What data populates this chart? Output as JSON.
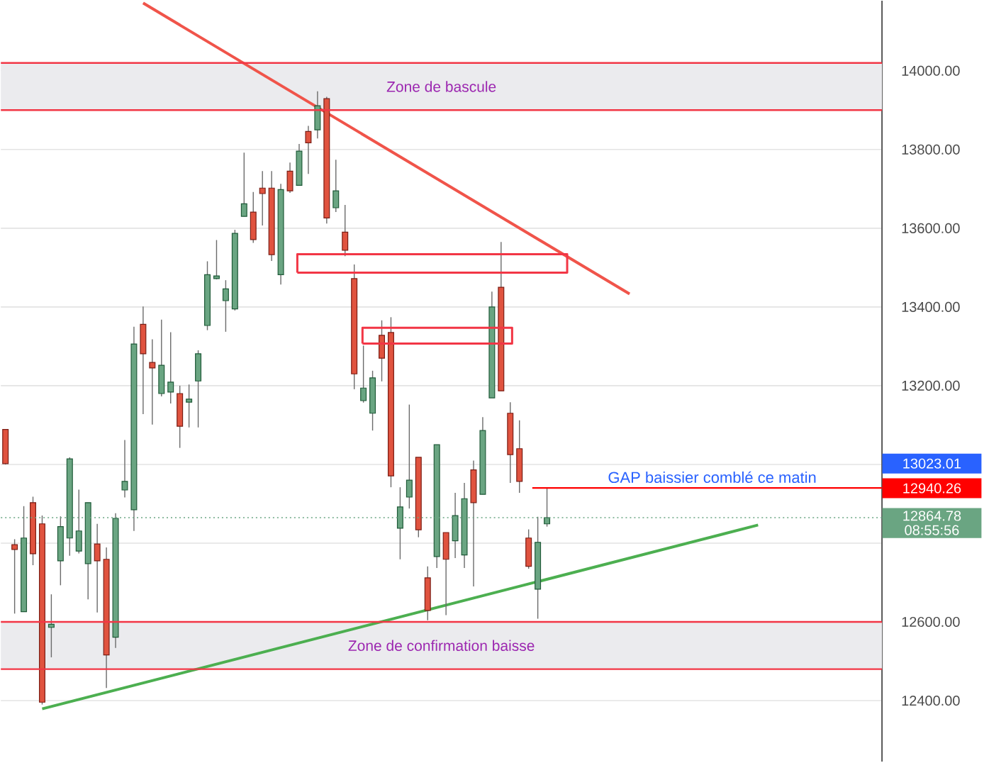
{
  "chart_data": {
    "type": "candlestick",
    "categories": [
      null,
      null,
      null,
      null,
      null,
      null,
      null,
      null,
      null,
      null,
      null,
      null,
      null,
      null,
      null,
      null,
      null,
      null,
      null,
      null,
      null,
      null,
      null,
      null,
      null,
      null,
      null,
      null,
      null,
      null,
      null,
      null,
      null,
      null,
      null,
      null,
      null,
      null,
      null,
      null,
      null,
      null,
      null,
      null,
      null,
      null,
      null,
      null,
      null,
      null,
      null,
      null,
      null,
      null,
      null,
      null,
      null,
      null,
      null,
      null,
      null,
      null,
      null,
      null,
      null,
      null,
      null,
      null,
      null,
      null,
      null,
      null,
      null,
      null,
      null,
      null,
      null,
      null,
      null,
      null,
      null,
      null,
      null,
      null,
      null,
      null,
      null,
      null,
      null,
      null,
      null,
      null,
      null,
      null,
      null,
      null
    ],
    "ohlc": [
      [
        13089,
        13090,
        13000,
        13002
      ],
      [
        12796,
        12810,
        12621,
        12784
      ],
      [
        12626,
        12894,
        12626,
        12813
      ],
      [
        12903,
        12918,
        12744,
        12773
      ],
      [
        12849,
        12870,
        12390,
        12396
      ],
      [
        12586,
        12670,
        12510,
        12594
      ],
      [
        12755,
        12868,
        12693,
        12842
      ],
      [
        12813,
        13018,
        12768,
        13014
      ],
      [
        12780,
        12936,
        12774,
        12831
      ],
      [
        12748,
        12903,
        12657,
        12903
      ],
      [
        12798,
        12849,
        12624,
        12755
      ],
      [
        12759,
        12789,
        12432,
        12516
      ],
      [
        12561,
        12876,
        12534,
        12863
      ],
      [
        12935,
        13062,
        12916,
        12957
      ],
      [
        12885,
        13350,
        12831,
        13306
      ],
      [
        13356,
        13401,
        13128,
        13281
      ],
      [
        13259,
        13318,
        13101,
        13245
      ],
      [
        13180,
        13368,
        13173,
        13252
      ],
      [
        13184,
        13336,
        13155,
        13209
      ],
      [
        13180,
        13200,
        13042,
        13097
      ],
      [
        13158,
        13203,
        13094,
        13166
      ],
      [
        13212,
        13290,
        13094,
        13281
      ],
      [
        13353,
        13516,
        13341,
        13482
      ],
      [
        13472,
        13570,
        13470,
        13479
      ],
      [
        13416,
        13468,
        13337,
        13446
      ],
      [
        13395,
        13596,
        13391,
        13587
      ],
      [
        13630,
        13792,
        13630,
        13662
      ],
      [
        13641,
        13692,
        13563,
        13571
      ],
      [
        13702,
        13745,
        13607,
        13688
      ],
      [
        13702,
        13745,
        13517,
        13533
      ],
      [
        13482,
        13713,
        13457,
        13698
      ],
      [
        13745,
        13767,
        13690,
        13695
      ],
      [
        13709,
        13814,
        13709,
        13796
      ],
      [
        13846,
        13860,
        13738,
        13817
      ],
      [
        13850,
        13948,
        13828,
        13911
      ],
      [
        13929,
        13934,
        13612,
        13626
      ],
      [
        13652,
        13774,
        13641,
        13695
      ],
      [
        13590,
        13659,
        13529,
        13544
      ],
      [
        13472,
        13508,
        13191,
        13230
      ],
      [
        13162,
        13302,
        13157,
        13194
      ],
      [
        13130,
        13238,
        13086,
        13220
      ],
      [
        13328,
        13366,
        13211,
        13270
      ],
      [
        13335,
        13374,
        12942,
        12971
      ],
      [
        12838,
        12942,
        12759,
        12892
      ],
      [
        12917,
        13152,
        12888,
        12960
      ],
      [
        13018,
        13018,
        12815,
        12834
      ],
      [
        12712,
        12741,
        12604,
        12629
      ],
      [
        12766,
        13050,
        12737,
        13050
      ],
      [
        12827,
        12827,
        12617,
        12759
      ],
      [
        12806,
        12928,
        12762,
        12870
      ],
      [
        12770,
        12953,
        12737,
        12913
      ],
      [
        12986,
        13010,
        12690,
        12903
      ],
      [
        12924,
        13120,
        12924,
        13086
      ],
      [
        13169,
        13439,
        13169,
        13400
      ],
      [
        13450,
        13565,
        13187,
        13187
      ],
      [
        13130,
        13158,
        12953,
        13025
      ],
      [
        13040,
        13112,
        12928,
        12957
      ],
      [
        12813,
        12835,
        12735,
        12741
      ],
      [
        12683,
        12867,
        12608,
        12802
      ],
      [
        12849,
        12940,
        12842,
        12864.78
      ],
      null,
      null,
      null,
      null,
      null,
      null,
      null,
      null,
      null,
      null,
      null,
      null,
      null,
      null,
      null,
      null,
      null,
      null,
      null,
      null,
      null,
      null,
      null,
      null,
      null,
      null,
      null,
      null,
      null,
      null,
      null,
      null,
      null,
      null,
      null,
      null
    ],
    "series": [
      {
        "type": "line",
        "color": "#f0544a",
        "values": [
          null,
          null,
          null,
          null,
          null,
          null,
          null,
          null,
          null,
          null,
          null,
          null,
          null,
          null,
          null,
          14172,
          null,
          null,
          null,
          null,
          null,
          null,
          null,
          null,
          null,
          null,
          null,
          null,
          null,
          null,
          null,
          null,
          null,
          null,
          null,
          null,
          null,
          null,
          null,
          null,
          null,
          null,
          null,
          null,
          null,
          null,
          null,
          null,
          null,
          null,
          null,
          null,
          null,
          null,
          null,
          null,
          null,
          null,
          null,
          null,
          null,
          null,
          null,
          null,
          null,
          null,
          null,
          null,
          13433,
          null,
          null,
          null,
          null,
          null,
          null,
          null,
          null,
          null,
          null,
          null,
          null,
          null,
          null,
          null,
          null,
          null,
          null,
          null,
          null,
          null,
          null,
          null,
          null,
          null,
          null,
          null
        ]
      },
      {
        "type": "line",
        "color": "#4caf50",
        "values": [
          null,
          null,
          null,
          null,
          12379,
          null,
          null,
          null,
          null,
          null,
          null,
          null,
          null,
          null,
          null,
          null,
          null,
          null,
          null,
          null,
          null,
          null,
          null,
          null,
          null,
          null,
          null,
          null,
          null,
          null,
          null,
          null,
          null,
          null,
          null,
          null,
          null,
          null,
          null,
          null,
          null,
          null,
          null,
          null,
          null,
          null,
          null,
          null,
          null,
          null,
          null,
          null,
          null,
          null,
          null,
          null,
          null,
          null,
          null,
          null,
          null,
          null,
          null,
          null,
          null,
          null,
          null,
          null,
          null,
          null,
          null,
          null,
          null,
          null,
          null,
          null,
          null,
          null,
          null,
          null,
          null,
          null,
          12846,
          null,
          null,
          null,
          null,
          null,
          null,
          null,
          null,
          null,
          null,
          null,
          null,
          null
        ]
      }
    ],
    "ylim": [
      12245,
      14178
    ],
    "yticks": [
      {
        "value": 12400,
        "label": "12400.00"
      },
      {
        "value": 12600,
        "label": "12600.00"
      },
      {
        "value": 12800,
        "label": null
      },
      {
        "value": 13000,
        "label": null
      },
      {
        "value": 13200,
        "label": "13200.00"
      },
      {
        "value": 13400,
        "label": "13400.00"
      },
      {
        "value": 13600,
        "label": "13600.00"
      },
      {
        "value": 13800,
        "label": "13800.00"
      },
      {
        "value": 14000,
        "label": "14000.00"
      }
    ],
    "tick_labels": "y",
    "grid": "y",
    "bands": [
      {
        "axis": "y",
        "from": 13900,
        "to": 14020,
        "label": "Zone de bascule",
        "color": "#ebebee"
      },
      {
        "axis": "y",
        "from": 12480,
        "to": 12600,
        "label": "Zone de confirmation baisse",
        "color": "#ebebee"
      }
    ],
    "ref_lines": [
      {
        "axis": "y",
        "value": 14020,
        "color": "#f23645",
        "line_style": "solid"
      },
      {
        "axis": "y",
        "value": 13900,
        "color": "#f23645",
        "line_style": "solid"
      },
      {
        "axis": "y",
        "value": 12600,
        "color": "#f23645",
        "line_style": "solid"
      },
      {
        "axis": "y",
        "value": 12480,
        "color": "#f23645",
        "line_style": "solid"
      },
      {
        "axis": "y",
        "value": 12940.26,
        "label": "12940.26",
        "color": "#ff0000",
        "line_style": "solid"
      },
      {
        "axis": "y",
        "value": 12864.78,
        "label": "12864.78",
        "color": "#6aa582",
        "line_style": "dotted"
      }
    ],
    "annotations": [
      {
        "text": "GAP baissier comblé ce matin",
        "y": 12940.26
      },
      "13023.01",
      "08:55:56"
    ]
  }
}
